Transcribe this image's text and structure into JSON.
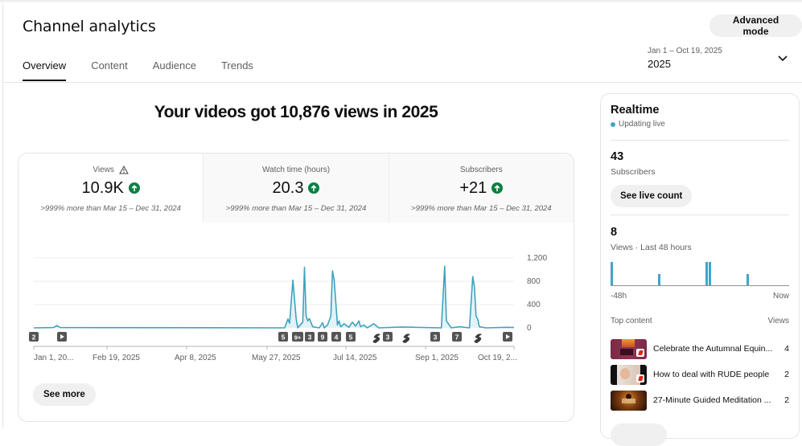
{
  "header": {
    "title": "Channel analytics",
    "advanced_mode_label": "Advanced mode",
    "date_range": "Jan 1 – Oct 19, 2025",
    "period": "2025"
  },
  "tabs": [
    {
      "label": "Overview",
      "active": true
    },
    {
      "label": "Content",
      "active": false
    },
    {
      "label": "Audience",
      "active": false
    },
    {
      "label": "Trends",
      "active": false
    }
  ],
  "overview": {
    "headline": "Your videos got 10,876 views in 2025",
    "metrics": [
      {
        "label": "Views",
        "value": "10.9K",
        "trend": "up",
        "comparison": ">999% more than Mar 15 – Dec 31, 2024",
        "warning_icon": true
      },
      {
        "label": "Watch time (hours)",
        "value": "20.3",
        "trend": "up",
        "comparison": ">999% more than Mar 15 – Dec 31, 2024"
      },
      {
        "label": "Subscribers",
        "value": "+21",
        "trend": "up",
        "comparison": ">999% more than Mar 15 – Dec 31, 2024"
      }
    ],
    "see_more_label": "See more"
  },
  "chart_data": {
    "type": "area",
    "title": "Views",
    "xlabel": "",
    "ylabel": "Views",
    "ylim": [
      0,
      1200
    ],
    "y_ticks": [
      "1,200",
      "800",
      "400",
      "0"
    ],
    "x_tick_labels": [
      "Jan 1, 20...",
      "Feb 19, 2025",
      "Apr 8, 2025",
      "May 27, 2025",
      "Jul 14, 2025",
      "Sep 1, 2025",
      "Oct 19, 2..."
    ],
    "grid": true,
    "color": "#3ea3bd",
    "series": [
      {
        "name": "Views",
        "points": [
          [
            "Jan 1",
            0
          ],
          [
            "Jan 13",
            5
          ],
          [
            "Jan 15",
            40
          ],
          [
            "Jan 17",
            5
          ],
          [
            "Jun 2",
            0
          ],
          [
            "Jun 4",
            150
          ],
          [
            "Jun 5",
            80
          ],
          [
            "Jun 7",
            820
          ],
          [
            "Jun 9",
            150
          ],
          [
            "Jun 10",
            0
          ],
          [
            "Jun 13",
            100
          ],
          [
            "Jun 14",
            1040
          ],
          [
            "Jun 15",
            200
          ],
          [
            "Jun 16",
            120
          ],
          [
            "Jun 17",
            160
          ],
          [
            "Jun 19",
            20
          ],
          [
            "Jun 23",
            0
          ],
          [
            "Jun 25",
            90
          ],
          [
            "Jun 26",
            0
          ],
          [
            "Jun 28",
            50
          ],
          [
            "Jun 30",
            200
          ],
          [
            "Jul 1",
            980
          ],
          [
            "Jul 2",
            820
          ],
          [
            "Jul 4",
            50
          ],
          [
            "Jul 5",
            120
          ],
          [
            "Jul 6",
            20
          ],
          [
            "Jul 8",
            70
          ],
          [
            "Jul 11",
            10
          ],
          [
            "Jul 13",
            100
          ],
          [
            "Jul 15",
            30
          ],
          [
            "Jul 17",
            120
          ],
          [
            "Jul 18",
            20
          ],
          [
            "Jul 20",
            50
          ],
          [
            "Jul 22",
            0
          ],
          [
            "Jul 26",
            70
          ],
          [
            "Jul 29",
            0
          ],
          [
            "Aug 12",
            15
          ],
          [
            "Aug 20",
            10
          ],
          [
            "Sep 5",
            0
          ],
          [
            "Sep 7",
            1060
          ],
          [
            "Sep 8",
            120
          ],
          [
            "Sep 9",
            80
          ],
          [
            "Sep 11",
            0
          ],
          [
            "Sep 16",
            20
          ],
          [
            "Sep 22",
            0
          ],
          [
            "Sep 24",
            880
          ],
          [
            "Sep 25",
            700
          ],
          [
            "Sep 26",
            200
          ],
          [
            "Sep 27",
            150
          ],
          [
            "Sep 28",
            20
          ],
          [
            "Oct 2",
            0
          ],
          [
            "Oct 15",
            10
          ],
          [
            "Oct 19",
            5
          ]
        ]
      }
    ],
    "markers": [
      {
        "label": "2",
        "type": "count"
      },
      {
        "label": "▶",
        "type": "video"
      },
      {
        "label": "5",
        "type": "count"
      },
      {
        "label": "9+",
        "type": "count"
      },
      {
        "label": "3",
        "type": "count"
      },
      {
        "label": "9",
        "type": "count"
      },
      {
        "label": "4",
        "type": "count"
      },
      {
        "label": "5",
        "type": "count"
      },
      {
        "label": "shorts",
        "type": "short"
      },
      {
        "label": "3",
        "type": "count"
      },
      {
        "label": "shorts",
        "type": "short"
      },
      {
        "label": "3",
        "type": "count"
      },
      {
        "label": "7",
        "type": "count"
      },
      {
        "label": "shorts",
        "type": "short"
      },
      {
        "label": "▶",
        "type": "video"
      }
    ]
  },
  "realtime": {
    "title": "Realtime",
    "status": "Updating live",
    "subscribers_count": "43",
    "subscribers_label": "Subscribers",
    "see_live_count_label": "See live count",
    "views_count": "8",
    "views_label": "Views · Last 48 hours",
    "axis_start": "-48h",
    "axis_end": "Now",
    "bars": [
      2,
      1,
      2,
      2,
      1
    ],
    "top_content_label": "Top content",
    "views_column_label": "Views",
    "top_content": [
      {
        "title": "Celebrate the Autumnal Equin...",
        "views": "4",
        "shorts": true
      },
      {
        "title": "How to deal with RUDE people",
        "views": "2",
        "shorts": true
      },
      {
        "title": "27-Minute Guided Meditation ...",
        "views": "2",
        "shorts": false
      }
    ]
  }
}
